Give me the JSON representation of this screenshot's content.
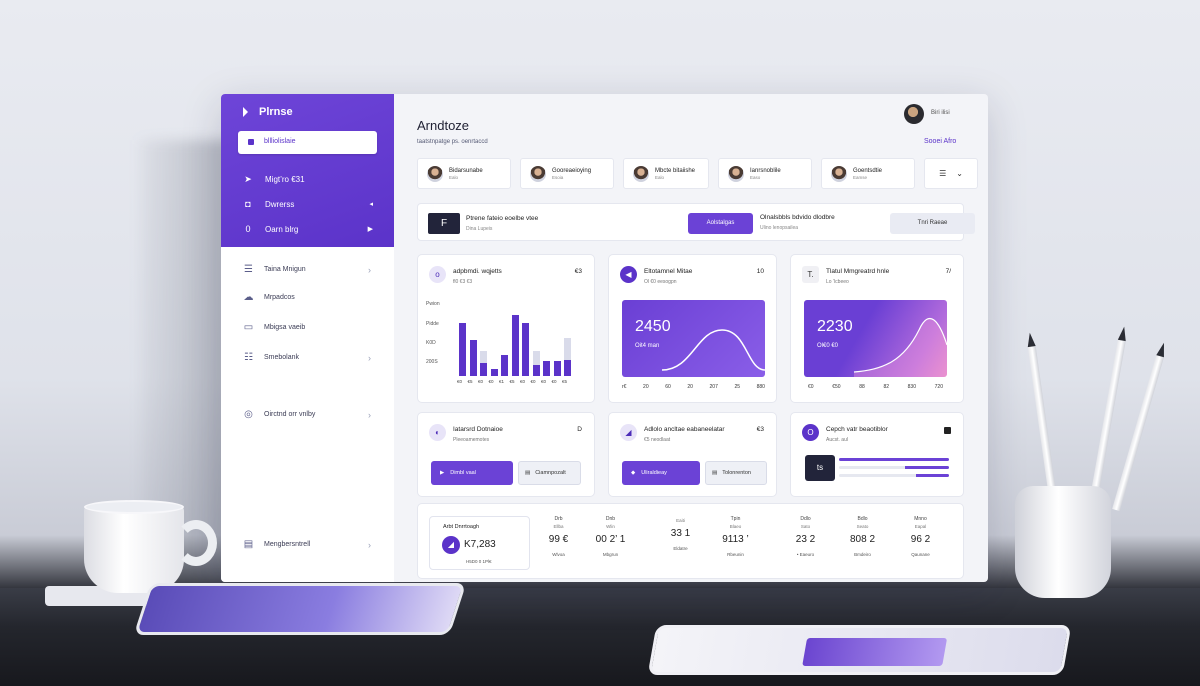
{
  "sidebar": {
    "brand": "Plrnse",
    "search_label": "bllliolislaie",
    "top_items": [
      {
        "icon": "send-icon",
        "glyph": "➤",
        "label": "Migt’ro €31"
      },
      {
        "icon": "shield-icon",
        "glyph": "◘",
        "label": "Dwrerss"
      },
      {
        "icon": "circle-icon",
        "glyph": "0",
        "label": "Oarn blrg"
      }
    ],
    "nav_items": [
      {
        "icon": "list-icon",
        "glyph": "☰",
        "label": "Taina Mnigun"
      },
      {
        "icon": "cloud-icon",
        "glyph": "☁",
        "label": "Mrpadcos"
      },
      {
        "icon": "monitor-icon",
        "glyph": "▭",
        "label": "Mbigsa vaeib"
      },
      {
        "icon": "grid-icon",
        "glyph": "☷",
        "label": "Smebolank"
      },
      {
        "icon": "globe-icon",
        "glyph": "◎",
        "label": "Oirctnd orr vnlby"
      },
      {
        "icon": "folder-icon",
        "glyph": "▤",
        "label": "Mengbersntrell"
      }
    ]
  },
  "header": {
    "title": "Arndtoze",
    "subtitle": "taatstnpatge ps. oenrtaccd",
    "user_name": "Biri ilisi",
    "see_all": "Sooei Afro"
  },
  "people": [
    {
      "name": "Bidarsunabe",
      "role": "Ealo"
    },
    {
      "name": "Gooreaeioying",
      "role": "Esoia"
    },
    {
      "name": "Mbcte bitaiishe",
      "role": "Ealo"
    },
    {
      "name": "Ianrsnoblile",
      "role": "Easo"
    },
    {
      "name": "Goentsdtie",
      "role": "Eamse"
    }
  ],
  "people_menu": {
    "left": "☰",
    "right": "⌄"
  },
  "banner": {
    "logo_letter": "F",
    "title": "Ptrene fateio eoelbe vtee",
    "subtitle": "Dina Lupeis",
    "primary": "Aolstalgas",
    "title2": "Olnalsbbls bdvido dlodbre",
    "subtitle2": "Ulino lenopsailea",
    "secondary": "Tnri Raeae"
  },
  "cards": {
    "c1": {
      "icon": "o",
      "title": "adpbmdi. wqjetts",
      "sub": "fl0 €3 €3",
      "num": "€3"
    },
    "c2": {
      "icon": "◀",
      "title": "Eltotamnel Mitae",
      "sub": "Ol €0 eesogpn",
      "num": "10",
      "big": "2450",
      "small": "Oit4 man",
      "xlabels": [
        "r€",
        "20",
        "60",
        "20",
        "207",
        "25",
        "880"
      ]
    },
    "c3": {
      "icon": "T.",
      "title": "Tlatul Mmgreatrd hnle",
      "sub": "Lo ‘lcbeeo",
      "num": "7/",
      "big": "2230",
      "small": "Ol€0 €0",
      "xlabels": [
        "€0",
        "€50",
        "88",
        "82",
        "830",
        "720"
      ]
    },
    "c4": {
      "icon": "◐",
      "title": "Iatarsrd Dotnaioe",
      "sub": "Pleeoamemotes",
      "num": "D",
      "primary": "Dimbl vaal",
      "secondary": "Ciamnpozalt"
    },
    "c5": {
      "icon": "◢",
      "title": "Adlolo ancltae eabaneelatar",
      "sub": "€5 neodlaat",
      "num": "€3",
      "primary": "Uliraldieay",
      "secondary": "Tolonrenton"
    },
    "c6": {
      "icon": "O",
      "title": "Cepch vatr beaotiblor",
      "sub": "Aucst. aul",
      "num": "",
      "box": "ts"
    }
  },
  "chart_data": {
    "type": "bar",
    "y_tick_labels": [
      "Pwion",
      "Pidde",
      "K0D",
      "200S"
    ],
    "x_tick_labels": [
      "€0",
      "€5",
      "€0",
      "€0",
      "€1",
      "€5",
      "€0",
      "€0",
      "€0",
      "€0",
      "€5"
    ],
    "ylim": [
      0,
      100
    ],
    "series": [
      {
        "values": [
          72,
          48,
          18,
          10,
          28,
          82,
          72,
          15,
          20,
          20,
          22
        ]
      },
      {
        "values": [
          0,
          0,
          34,
          0,
          0,
          0,
          0,
          34,
          0,
          0,
          52
        ]
      }
    ]
  },
  "stats": {
    "main": {
      "label": "Arbt Dnrrtoagh",
      "icon": "◢",
      "value": "K7,283",
      "foot": "H5D0 0 1Pl€"
    },
    "items": [
      {
        "label": "Drb",
        "sub": "Ellba",
        "value": "99 €",
        "foot": "Wlvoa"
      },
      {
        "label": "Dnb",
        "sub": "Wlin",
        "value": "00 2’ 1",
        "foot": "Mbgrun"
      },
      {
        "label": "",
        "sub": "Eaiti",
        "value": "33 1",
        "foot": "Eldatre"
      },
      {
        "label": "Tpin",
        "sub": "Blaeo",
        "value": "9113 ’",
        "foot": "Rbeunin"
      },
      {
        "label": "Ddlo",
        "sub": "Sato",
        "value": "23 2",
        "foot": "• Eaeuro"
      },
      {
        "label": "Bdlo",
        "sub": "Seato",
        "value": "808 2",
        "foot": "Bmdeiro"
      },
      {
        "label": "Mnno",
        "sub": "Eapal",
        "value": "96 2",
        "foot": "Qaunane"
      }
    ]
  },
  "colors": {
    "accent": "#5b33c9",
    "accent_light": "#8f6af0",
    "bg": "#f3f4f8"
  }
}
